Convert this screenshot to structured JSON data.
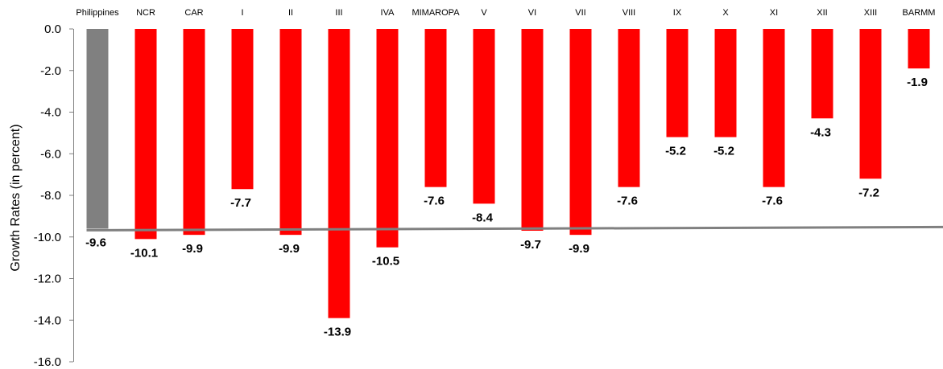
{
  "chart_data": {
    "type": "bar",
    "ylabel": "Growth Rates (in percent)",
    "ylim": [
      -16.0,
      0.0
    ],
    "ytick_step": 2.0,
    "ytick_labels": [
      "0.0",
      "-2.0",
      "-4.0",
      "-6.0",
      "-8.0",
      "-10.0",
      "-12.0",
      "-14.0",
      "-16.0"
    ],
    "categories": [
      "Philippines",
      "NCR",
      "CAR",
      "I",
      "II",
      "III",
      "IVA",
      "MIMAROPA",
      "V",
      "VI",
      "VII",
      "VIII",
      "IX",
      "X",
      "XI",
      "XII",
      "XIII",
      "BARMM"
    ],
    "values": [
      -9.6,
      -10.1,
      -9.9,
      -7.7,
      -9.9,
      -13.9,
      -10.5,
      -7.6,
      -8.4,
      -9.7,
      -9.9,
      -7.6,
      -5.2,
      -5.2,
      -7.6,
      -4.3,
      -7.2,
      -1.9
    ],
    "value_labels": [
      "-9.6",
      "-10.1",
      "-9.9",
      "-7.7",
      "-9.9",
      "-13.9",
      "-10.5",
      "-7.6",
      "-8.4",
      "-9.7",
      "-9.9",
      "-7.6",
      "-5.2",
      "-5.2",
      "-7.6",
      "-4.3",
      "-7.2",
      "-1.9"
    ],
    "reference_line": -9.6,
    "colors": {
      "national": "#808080",
      "region": "#ff0000",
      "reference": "#808080",
      "axis": "#808080"
    },
    "grid": false,
    "legend": "none"
  }
}
